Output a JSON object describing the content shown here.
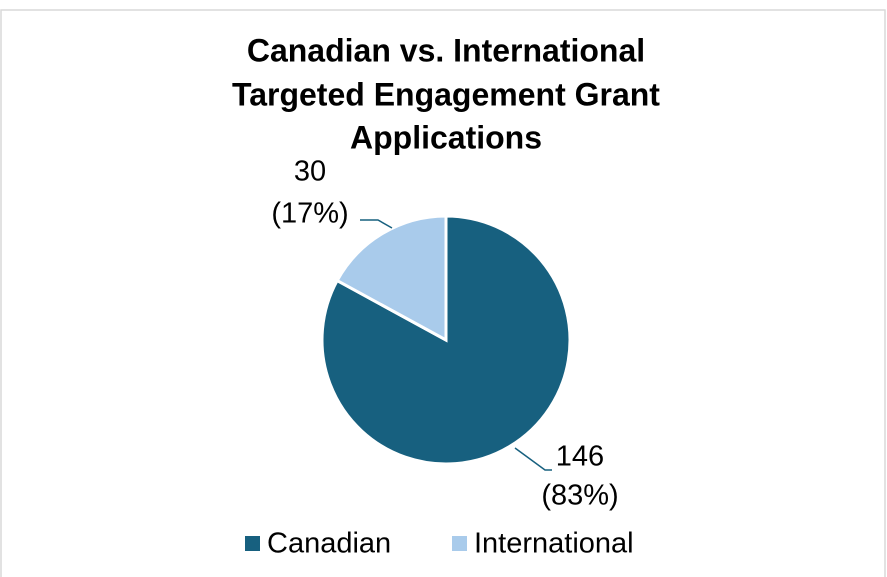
{
  "chart_data": {
    "type": "pie",
    "title": [
      "Canadian vs. International",
      "Targeted Engagement Grant",
      "Applications"
    ],
    "categories": [
      "Canadian",
      "International"
    ],
    "values": [
      146,
      30
    ],
    "value_labels": [
      [
        "146",
        "(83%)"
      ],
      [
        "30",
        "(17%)"
      ]
    ],
    "colors": [
      "#17607f",
      "#a9cbeb"
    ],
    "legend": "bottom"
  }
}
